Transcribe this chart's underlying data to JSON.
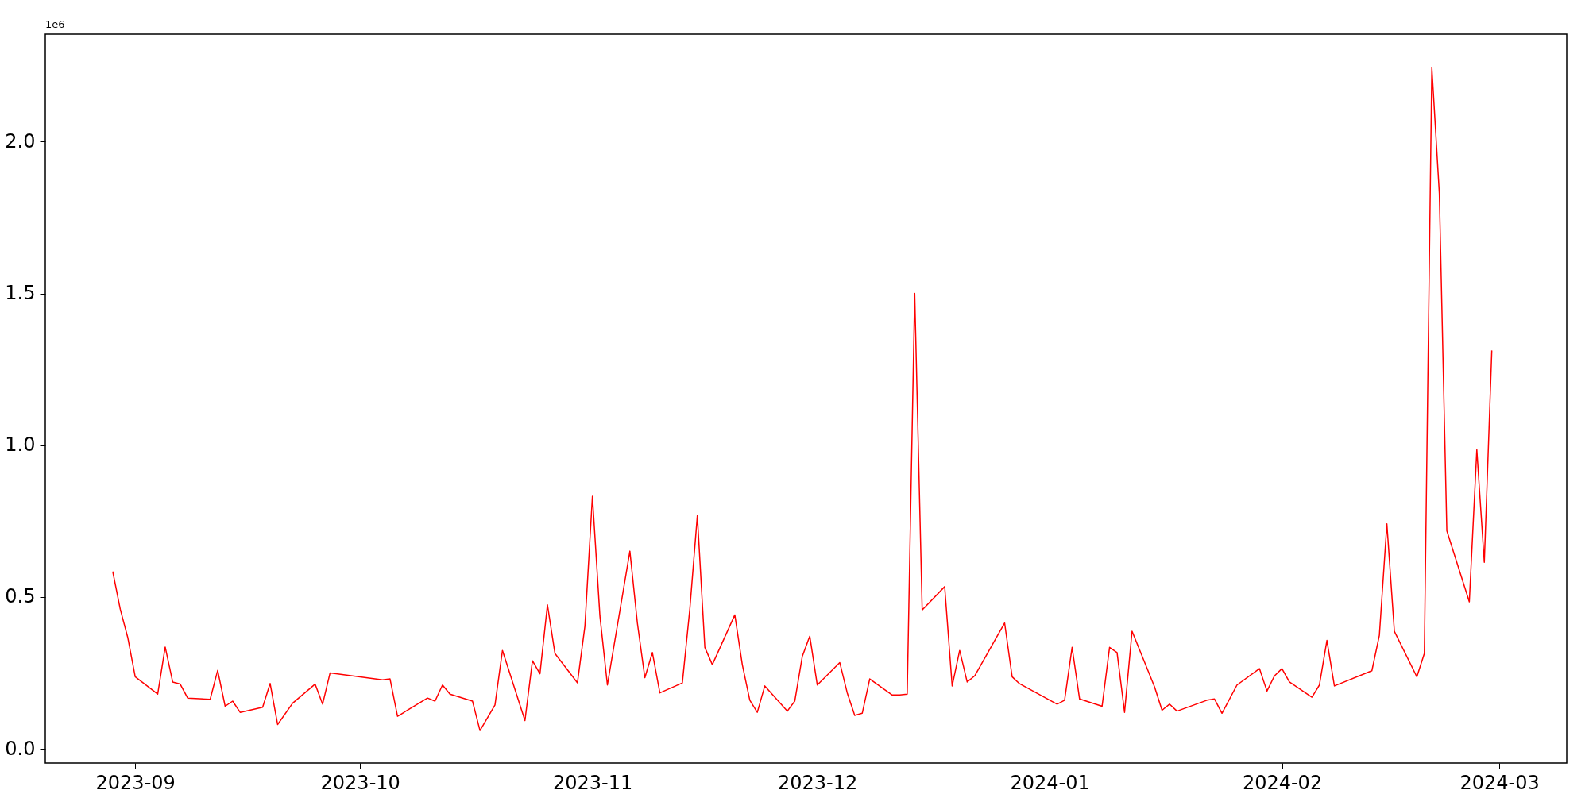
{
  "chart_data": {
    "type": "line",
    "x": [
      "2023-08-29",
      "2023-08-30",
      "2023-08-31",
      "2023-09-01",
      "2023-09-04",
      "2023-09-05",
      "2023-09-06",
      "2023-09-07",
      "2023-09-08",
      "2023-09-11",
      "2023-09-12",
      "2023-09-13",
      "2023-09-14",
      "2023-09-15",
      "2023-09-18",
      "2023-09-19",
      "2023-09-20",
      "2023-09-22",
      "2023-09-25",
      "2023-09-26",
      "2023-09-27",
      "2023-10-04",
      "2023-10-05",
      "2023-10-06",
      "2023-10-10",
      "2023-10-11",
      "2023-10-12",
      "2023-10-13",
      "2023-10-16",
      "2023-10-17",
      "2023-10-19",
      "2023-10-20",
      "2023-10-23",
      "2023-10-24",
      "2023-10-25",
      "2023-10-26",
      "2023-10-27",
      "2023-10-30",
      "2023-10-31",
      "2023-11-01",
      "2023-11-02",
      "2023-11-03",
      "2023-11-06",
      "2023-11-07",
      "2023-11-08",
      "2023-11-09",
      "2023-11-10",
      "2023-11-13",
      "2023-11-14",
      "2023-11-15",
      "2023-11-16",
      "2023-11-17",
      "2023-11-20",
      "2023-11-21",
      "2023-11-22",
      "2023-11-23",
      "2023-11-24",
      "2023-11-27",
      "2023-11-28",
      "2023-11-29",
      "2023-11-30",
      "2023-12-01",
      "2023-12-04",
      "2023-12-05",
      "2023-12-06",
      "2023-12-07",
      "2023-12-08",
      "2023-12-11",
      "2023-12-12",
      "2023-12-13",
      "2023-12-14",
      "2023-12-15",
      "2023-12-18",
      "2023-12-19",
      "2023-12-20",
      "2023-12-21",
      "2023-12-22",
      "2023-12-26",
      "2023-12-27",
      "2023-12-28",
      "2024-01-02",
      "2024-01-03",
      "2024-01-04",
      "2024-01-05",
      "2024-01-08",
      "2024-01-09",
      "2024-01-10",
      "2024-01-11",
      "2024-01-12",
      "2024-01-15",
      "2024-01-16",
      "2024-01-17",
      "2024-01-18",
      "2024-01-22",
      "2024-01-23",
      "2024-01-24",
      "2024-01-26",
      "2024-01-29",
      "2024-01-30",
      "2024-01-31",
      "2024-02-01",
      "2024-02-02",
      "2024-02-05",
      "2024-02-06",
      "2024-02-07",
      "2024-02-08",
      "2024-02-13",
      "2024-02-14",
      "2024-02-15",
      "2024-02-16",
      "2024-02-19",
      "2024-02-20",
      "2024-02-21",
      "2024-02-22",
      "2024-02-23",
      "2024-02-26",
      "2024-02-27",
      "2024-02-28",
      "2024-02-29"
    ],
    "series": [
      {
        "color": "#ff0000",
        "values": [
          0.584,
          0.46,
          0.367,
          0.237,
          0.18,
          0.335,
          0.22,
          0.213,
          0.167,
          0.163,
          0.258,
          0.14,
          0.157,
          0.12,
          0.137,
          0.215,
          0.08,
          0.15,
          0.213,
          0.147,
          0.25,
          0.227,
          0.23,
          0.107,
          0.167,
          0.157,
          0.21,
          0.18,
          0.157,
          0.06,
          0.144,
          0.324,
          0.093,
          0.29,
          0.247,
          0.474,
          0.314,
          0.217,
          0.404,
          0.832,
          0.437,
          0.21,
          0.651,
          0.414,
          0.234,
          0.317,
          0.184,
          0.217,
          0.461,
          0.768,
          0.334,
          0.277,
          0.441,
          0.277,
          0.16,
          0.12,
          0.207,
          0.124,
          0.157,
          0.304,
          0.371,
          0.21,
          0.284,
          0.184,
          0.11,
          0.117,
          0.23,
          0.177,
          0.177,
          0.18,
          1.5,
          0.457,
          0.534,
          0.207,
          0.324,
          0.22,
          0.24,
          0.414,
          0.237,
          0.214,
          0.147,
          0.16,
          0.334,
          0.164,
          0.14,
          0.334,
          0.317,
          0.12,
          0.387,
          0.204,
          0.127,
          0.147,
          0.124,
          0.16,
          0.164,
          0.117,
          0.21,
          0.264,
          0.19,
          0.24,
          0.264,
          0.22,
          0.17,
          0.21,
          0.357,
          0.207,
          0.257,
          0.374,
          0.741,
          0.387,
          0.237,
          0.314,
          2.244,
          1.83,
          0.718,
          0.484,
          0.985,
          0.614,
          1.312
        ]
      }
    ],
    "xlim": [
      "2023-08-20",
      "2024-03-10"
    ],
    "xticks": [
      "2023-09",
      "2023-10",
      "2023-11",
      "2023-12",
      "2024-01",
      "2024-02",
      "2024-03"
    ],
    "ylim": [
      -0.047,
      2.354
    ],
    "yticks": [
      {
        "value": 0,
        "label": "0.0"
      },
      0.5,
      {
        "value": 1,
        "label": "1.0"
      },
      1.5,
      {
        "value": 2,
        "label": "2.0"
      }
    ],
    "annotations": [
      "1e6"
    ],
    "grid": false,
    "line_style": "solid",
    "marker": "none"
  }
}
